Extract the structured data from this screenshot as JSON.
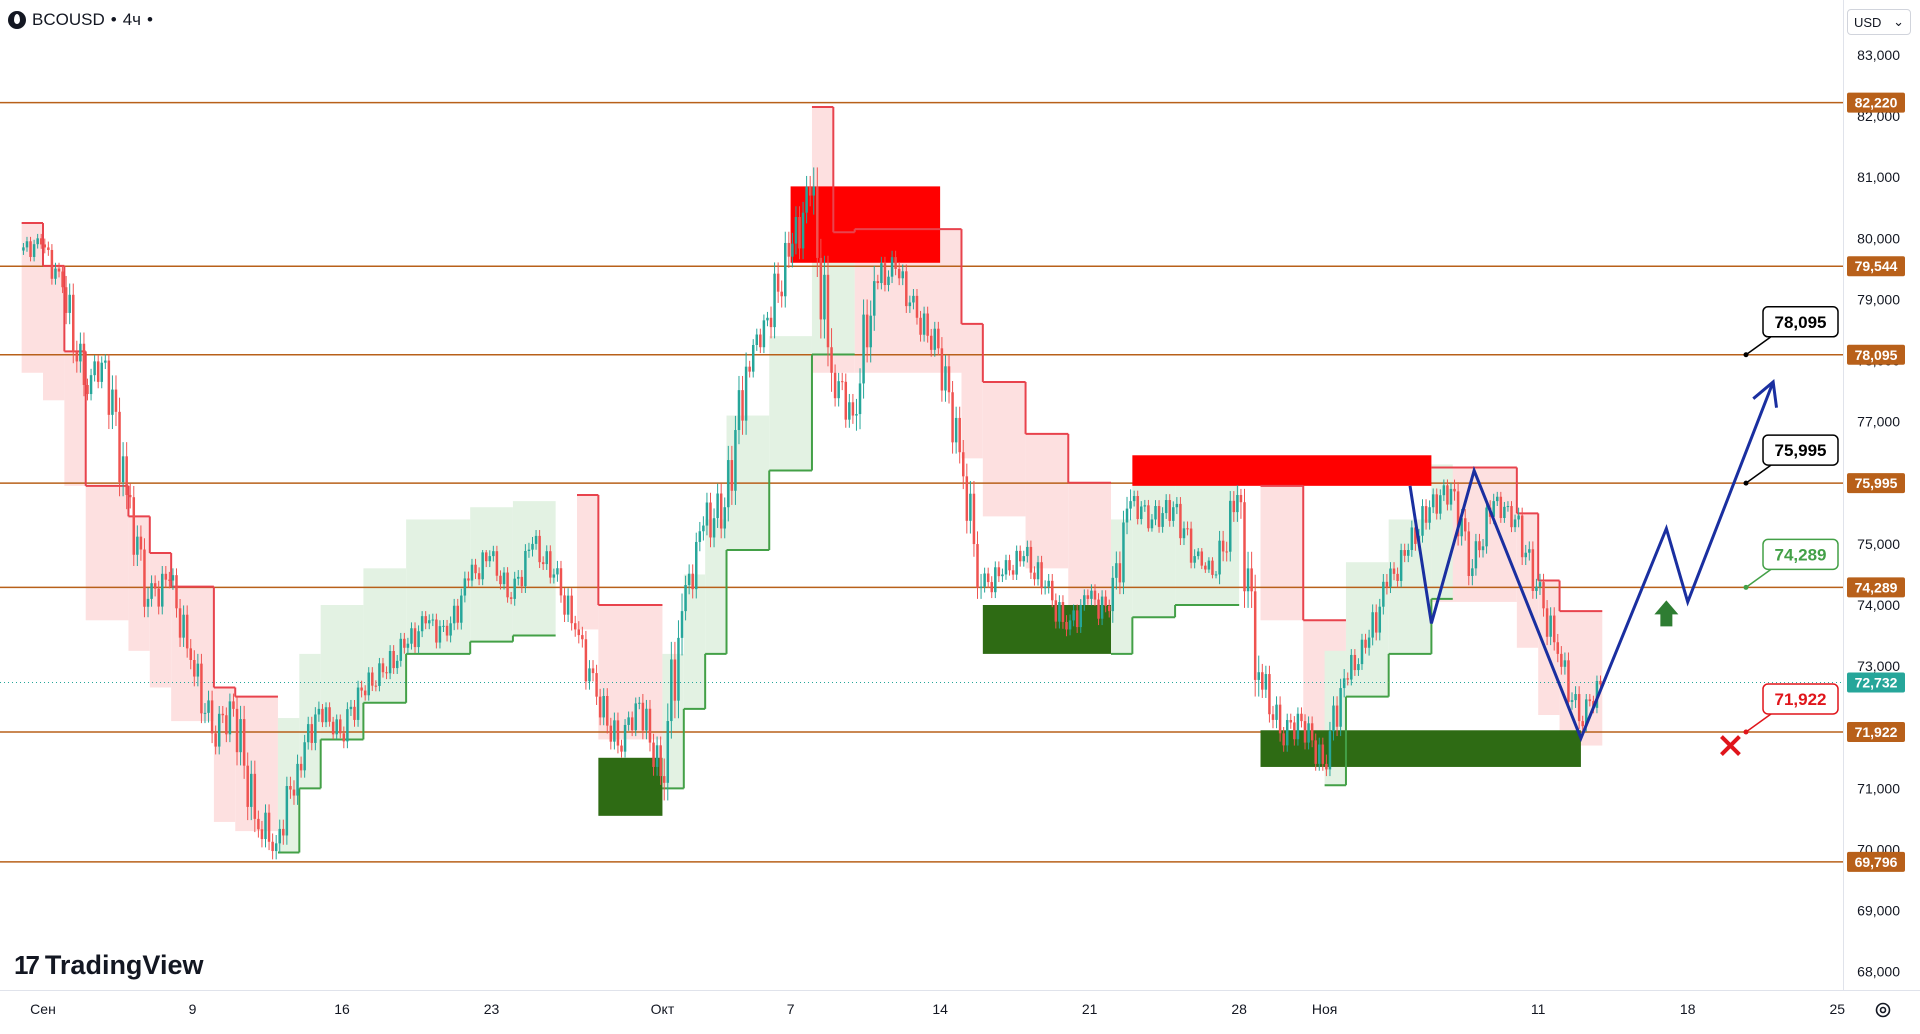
{
  "header": {
    "symbol": "BCOUSD",
    "interval": "4ч",
    "separator": "•"
  },
  "currency": {
    "label": "USD",
    "chevron": "⌄"
  },
  "branding": {
    "logo_mark": "17",
    "logo_text": "TradingView"
  },
  "settings_icon": "gear-icon",
  "colors": {
    "bull_candle": "#26a69a",
    "bear_candle": "#ef5350",
    "trail_resist": "#e8434d",
    "trail_support": "#43a047",
    "resist_fill": "#fde0e0",
    "support_fill": "#e3f2e3",
    "level_line": "#b8601a",
    "supply_zone": "#ff0000",
    "demand_zone": "#2e6b14",
    "forecast_path": "#1a2fa0",
    "up_arrow": "#2e7d32",
    "stop_cross": "#e0151b"
  },
  "chart_data": {
    "type": "candlestick",
    "title": "",
    "xlabel": "",
    "ylabel": "",
    "ylim": [
      67700,
      83900
    ],
    "grid": false,
    "y_ticks": [
      "83,000",
      "82,000",
      "81,000",
      "80,000",
      "79,000",
      "78,000",
      "77,000",
      "76,000",
      "75,000",
      "74,000",
      "73,000",
      "72,000",
      "71,000",
      "70,000",
      "69,000",
      "68,000"
    ],
    "x_ticks": [
      {
        "label": "Сен",
        "date": "2024-09-02"
      },
      {
        "label": "9",
        "date": "2024-09-09"
      },
      {
        "label": "16",
        "date": "2024-09-16"
      },
      {
        "label": "23",
        "date": "2024-09-23"
      },
      {
        "label": "Окт",
        "date": "2024-10-01"
      },
      {
        "label": "7",
        "date": "2024-10-07"
      },
      {
        "label": "14",
        "date": "2024-10-14"
      },
      {
        "label": "21",
        "date": "2024-10-21"
      },
      {
        "label": "28",
        "date": "2024-10-28"
      },
      {
        "label": "Ноя",
        "date": "2024-11-01"
      },
      {
        "label": "11",
        "date": "2024-11-11"
      },
      {
        "label": "18",
        "date": "2024-11-18"
      },
      {
        "label": "25",
        "date": "2024-11-25"
      }
    ],
    "last_price": {
      "value": 72732,
      "label": "72,732"
    },
    "levels": [
      {
        "value": 82220,
        "label": "82,220"
      },
      {
        "value": 79544,
        "label": "79,544"
      },
      {
        "value": 78095,
        "label": "78,095"
      },
      {
        "value": 75995,
        "label": "75,995"
      },
      {
        "value": 74289,
        "label": "74,289"
      },
      {
        "value": 71922,
        "label": "71,922"
      },
      {
        "value": 69796,
        "label": "69,796"
      }
    ],
    "callouts": [
      {
        "value": 78095,
        "label": "78,095",
        "style": "black"
      },
      {
        "value": 75995,
        "label": "75,995",
        "style": "black"
      },
      {
        "value": 74289,
        "label": "74,289",
        "style": "green"
      },
      {
        "value": 71922,
        "label": "71,922",
        "style": "red"
      }
    ],
    "zones": [
      {
        "kind": "supply",
        "x0": "2024-10-07",
        "x1": "2024-10-14",
        "y0": 79600,
        "y1": 80850
      },
      {
        "kind": "supply",
        "x0": "2024-10-23",
        "x1": "2024-11-06",
        "y0": 75950,
        "y1": 76450
      },
      {
        "kind": "demand",
        "x0": "2024-09-28",
        "x1": "2024-10-01",
        "y0": 70550,
        "y1": 71500
      },
      {
        "kind": "demand",
        "x0": "2024-10-16",
        "x1": "2024-10-22",
        "y0": 73200,
        "y1": 74000
      },
      {
        "kind": "demand",
        "x0": "2024-10-29",
        "x1": "2024-11-13",
        "y0": 71350,
        "y1": 71950
      }
    ],
    "forecast_path": [
      {
        "date": "2024-11-05",
        "value": 75950
      },
      {
        "date": "2024-11-06",
        "value": 73700
      },
      {
        "date": "2024-11-08",
        "value": 76200
      },
      {
        "date": "2024-11-13",
        "value": 71820
      },
      {
        "date": "2024-11-17",
        "value": 75250
      },
      {
        "date": "2024-11-18",
        "value": 74050
      },
      {
        "date": "2024-11-22",
        "value": 77650
      }
    ],
    "up_arrow": {
      "date": "2024-11-17",
      "value": 73650
    },
    "stop_cross": {
      "date": "2024-11-20",
      "value": 71700
    },
    "trail_stop": {
      "resist_segments": [
        {
          "x0": "2024-09-01",
          "x1": "2024-09-02",
          "y": 80250
        },
        {
          "x0": "2024-09-02",
          "x1": "2024-09-03",
          "y": 79550
        },
        {
          "x0": "2024-09-03",
          "x1": "2024-09-04",
          "y": 78150
        },
        {
          "x0": "2024-09-04",
          "x1": "2024-09-06",
          "y": 75950
        },
        {
          "x0": "2024-09-06",
          "x1": "2024-09-07",
          "y": 75450
        },
        {
          "x0": "2024-09-07",
          "x1": "2024-09-08",
          "y": 74850
        },
        {
          "x0": "2024-09-08",
          "x1": "2024-09-10",
          "y": 74300
        },
        {
          "x0": "2024-09-10",
          "x1": "2024-09-11",
          "y": 72650
        },
        {
          "x0": "2024-09-11",
          "x1": "2024-09-13",
          "y": 72500
        },
        {
          "x0": "2024-09-27",
          "x1": "2024-09-28",
          "y": 75800
        },
        {
          "x0": "2024-09-28",
          "x1": "2024-10-01",
          "y": 74000
        },
        {
          "x0": "2024-10-08",
          "x1": "2024-10-09",
          "y": 82150
        },
        {
          "x0": "2024-10-09",
          "x1": "2024-10-10",
          "y": 80100
        },
        {
          "x0": "2024-10-10",
          "x1": "2024-10-15",
          "y": 80150
        },
        {
          "x0": "2024-10-15",
          "x1": "2024-10-16",
          "y": 78600
        },
        {
          "x0": "2024-10-16",
          "x1": "2024-10-18",
          "y": 77650
        },
        {
          "x0": "2024-10-18",
          "x1": "2024-10-20",
          "y": 76800
        },
        {
          "x0": "2024-10-20",
          "x1": "2024-10-22",
          "y": 76000
        },
        {
          "x0": "2024-10-29",
          "x1": "2024-10-31",
          "y": 75950
        },
        {
          "x0": "2024-10-31",
          "x1": "2024-11-02",
          "y": 73750
        },
        {
          "x0": "2024-11-06",
          "x1": "2024-11-10",
          "y": 76250
        },
        {
          "x0": "2024-11-10",
          "x1": "2024-11-11",
          "y": 75500
        },
        {
          "x0": "2024-11-11",
          "x1": "2024-11-12",
          "y": 74400
        },
        {
          "x0": "2024-11-12",
          "x1": "2024-11-14",
          "y": 73900
        }
      ],
      "support_segments": [
        {
          "x0": "2024-09-13",
          "x1": "2024-09-14",
          "y": 69950
        },
        {
          "x0": "2024-09-14",
          "x1": "2024-09-15",
          "y": 71000
        },
        {
          "x0": "2024-09-15",
          "x1": "2024-09-17",
          "y": 71800
        },
        {
          "x0": "2024-09-17",
          "x1": "2024-09-19",
          "y": 72400
        },
        {
          "x0": "2024-09-19",
          "x1": "2024-09-22",
          "y": 73200
        },
        {
          "x0": "2024-09-22",
          "x1": "2024-09-24",
          "y": 73400
        },
        {
          "x0": "2024-09-24",
          "x1": "2024-09-26",
          "y": 73500
        },
        {
          "x0": "2024-10-01",
          "x1": "2024-10-02",
          "y": 71000
        },
        {
          "x0": "2024-10-02",
          "x1": "2024-10-03",
          "y": 72300
        },
        {
          "x0": "2024-10-03",
          "x1": "2024-10-04",
          "y": 73200
        },
        {
          "x0": "2024-10-04",
          "x1": "2024-10-06",
          "y": 74900
        },
        {
          "x0": "2024-10-06",
          "x1": "2024-10-08",
          "y": 76200
        },
        {
          "x0": "2024-10-08",
          "x1": "2024-10-10",
          "y": 78100
        },
        {
          "x0": "2024-10-22",
          "x1": "2024-10-23",
          "y": 73200
        },
        {
          "x0": "2024-10-23",
          "x1": "2024-10-25",
          "y": 73800
        },
        {
          "x0": "2024-10-25",
          "x1": "2024-10-28",
          "y": 74000
        },
        {
          "x0": "2024-11-01",
          "x1": "2024-11-02",
          "y": 71050
        },
        {
          "x0": "2024-11-02",
          "x1": "2024-11-04",
          "y": 72500
        },
        {
          "x0": "2024-11-04",
          "x1": "2024-11-06",
          "y": 73200
        },
        {
          "x0": "2024-11-06",
          "x1": "2024-11-07",
          "y": 74100
        }
      ]
    },
    "candles": [
      [
        "2024-09-01",
        79800,
        80200,
        79300,
        79900
      ],
      [
        "2024-09-02",
        79900,
        80100,
        78900,
        79200
      ],
      [
        "2024-09-03",
        79200,
        79400,
        77100,
        77600
      ],
      [
        "2024-09-04",
        77600,
        78200,
        76900,
        78000
      ],
      [
        "2024-09-05",
        78000,
        78100,
        75200,
        75800
      ],
      [
        "2024-09-06",
        75800,
        76100,
        73800,
        74100
      ],
      [
        "2024-09-07",
        74100,
        74900,
        73300,
        74400
      ],
      [
        "2024-09-08",
        74400,
        74600,
        72700,
        73100
      ],
      [
        "2024-09-09",
        73100,
        73500,
        71500,
        71900
      ],
      [
        "2024-09-10",
        71900,
        72800,
        71200,
        72300
      ],
      [
        "2024-09-11",
        72300,
        72900,
        70200,
        70500
      ],
      [
        "2024-09-12",
        70500,
        71200,
        69500,
        70100
      ],
      [
        "2024-09-13",
        70100,
        71800,
        69900,
        71400
      ],
      [
        "2024-09-14",
        71400,
        72600,
        71100,
        72300
      ],
      [
        "2024-09-15",
        72300,
        72700,
        71700,
        71900
      ],
      [
        "2024-09-16",
        71900,
        73000,
        71600,
        72600
      ],
      [
        "2024-09-17",
        72600,
        73200,
        72100,
        72900
      ],
      [
        "2024-09-18",
        72900,
        73700,
        72500,
        73300
      ],
      [
        "2024-09-19",
        73300,
        73900,
        72700,
        73700
      ],
      [
        "2024-09-20",
        73700,
        74300,
        73100,
        73500
      ],
      [
        "2024-09-21",
        73500,
        74700,
        73300,
        74400
      ],
      [
        "2024-09-22",
        74400,
        74900,
        73700,
        74800
      ],
      [
        "2024-09-23",
        74800,
        75000,
        73900,
        74100
      ],
      [
        "2024-09-24",
        74100,
        75300,
        73900,
        75000
      ],
      [
        "2024-09-25",
        75000,
        75400,
        74200,
        74500
      ],
      [
        "2024-09-26",
        74500,
        74800,
        73300,
        73600
      ],
      [
        "2024-09-27",
        73600,
        73900,
        72200,
        72500
      ],
      [
        "2024-09-28",
        72500,
        72900,
        71300,
        71700
      ],
      [
        "2024-09-29",
        71700,
        72700,
        71500,
        72400
      ],
      [
        "2024-09-30",
        72400,
        72800,
        71000,
        71200
      ],
      [
        "2024-10-01",
        71200,
        74200,
        70600,
        73900
      ],
      [
        "2024-10-02",
        73900,
        75600,
        73700,
        75300
      ],
      [
        "2024-10-03",
        75300,
        76300,
        74300,
        75600
      ],
      [
        "2024-10-04",
        75600,
        78200,
        75300,
        77900
      ],
      [
        "2024-10-05",
        77900,
        78900,
        77700,
        78700
      ],
      [
        "2024-10-06",
        78700,
        80500,
        78200,
        79700
      ],
      [
        "2024-10-07",
        79700,
        81500,
        79300,
        80700
      ],
      [
        "2024-10-08",
        80700,
        81200,
        77300,
        77800
      ],
      [
        "2024-10-09",
        77800,
        78600,
        76900,
        77100
      ],
      [
        "2024-10-10",
        77100,
        79700,
        76600,
        79300
      ],
      [
        "2024-10-11",
        79300,
        79900,
        78600,
        79500
      ],
      [
        "2024-10-12",
        79500,
        79800,
        78400,
        78700
      ],
      [
        "2024-10-13",
        78700,
        79300,
        77900,
        78200
      ],
      [
        "2024-10-14",
        78200,
        78500,
        76200,
        76500
      ],
      [
        "2024-10-15",
        76500,
        76700,
        74100,
        74300
      ],
      [
        "2024-10-16",
        74300,
        74900,
        73700,
        74500
      ],
      [
        "2024-10-17",
        74500,
        75300,
        74200,
        74800
      ],
      [
        "2024-10-18",
        74800,
        75200,
        73900,
        74300
      ],
      [
        "2024-10-19",
        74300,
        74600,
        73200,
        73600
      ],
      [
        "2024-10-20",
        73600,
        74400,
        73200,
        74100
      ],
      [
        "2024-10-21",
        74100,
        74800,
        73500,
        73900
      ],
      [
        "2024-10-22",
        73900,
        76100,
        73700,
        75700
      ],
      [
        "2024-10-23",
        75700,
        76300,
        75200,
        75400
      ],
      [
        "2024-10-24",
        75400,
        76100,
        74900,
        75600
      ],
      [
        "2024-10-25",
        75600,
        76000,
        74600,
        74800
      ],
      [
        "2024-10-26",
        74800,
        75000,
        74300,
        74500
      ],
      [
        "2024-10-27",
        74500,
        76200,
        74200,
        75800
      ],
      [
        "2024-10-28",
        75800,
        75900,
        72500,
        72900
      ],
      [
        "2024-10-29",
        72900,
        73300,
        71600,
        71900
      ],
      [
        "2024-10-30",
        71900,
        72500,
        71200,
        72100
      ],
      [
        "2024-10-31",
        72100,
        72400,
        71000,
        71400
      ],
      [
        "2024-11-01",
        71400,
        73100,
        71200,
        72800
      ],
      [
        "2024-11-02",
        72800,
        73600,
        72400,
        73300
      ],
      [
        "2024-11-03",
        73300,
        74600,
        73000,
        74300
      ],
      [
        "2024-11-04",
        74300,
        75300,
        74000,
        74900
      ],
      [
        "2024-11-05",
        74900,
        76100,
        74700,
        75600
      ],
      [
        "2024-11-06",
        75600,
        76500,
        75300,
        75900
      ],
      [
        "2024-11-07",
        75900,
        76100,
        74200,
        74600
      ],
      [
        "2024-11-08",
        74600,
        75900,
        74400,
        75700
      ],
      [
        "2024-11-09",
        75700,
        76100,
        75100,
        75400
      ],
      [
        "2024-11-10",
        75400,
        75600,
        74000,
        74300
      ],
      [
        "2024-11-11",
        74300,
        74600,
        72900,
        73200
      ],
      [
        "2024-11-12",
        73200,
        73500,
        71900,
        72100
      ],
      [
        "2024-11-13",
        72100,
        72900,
        71800,
        72700
      ]
    ]
  }
}
